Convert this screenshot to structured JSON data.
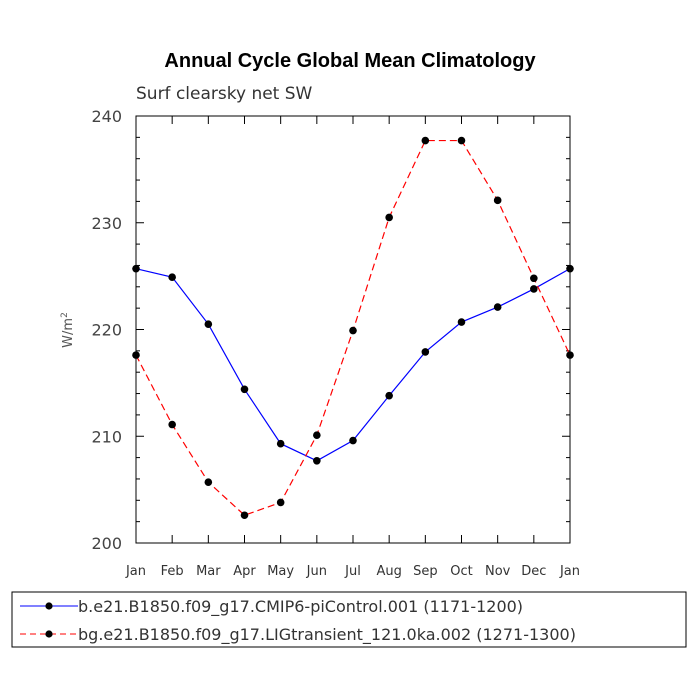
{
  "chart_data": {
    "type": "line",
    "title": "Annual Cycle Global Mean Climatology",
    "subtitle": "Surf clearsky net SW",
    "xlabel": "",
    "ylabel": "W/m",
    "ylabel_superscript": "2",
    "ylim": [
      200,
      240
    ],
    "yticks": [
      200,
      210,
      220,
      230,
      240
    ],
    "categories": [
      "Jan",
      "Feb",
      "Mar",
      "Apr",
      "May",
      "Jun",
      "Jul",
      "Aug",
      "Sep",
      "Oct",
      "Nov",
      "Dec",
      "Jan"
    ],
    "grid": false,
    "legend_placement": "bottom",
    "series": [
      {
        "name": "b.e21.B1850.f09_g17.CMIP6-piControl.001 (1171-1200)",
        "color": "#0000ff",
        "dash": "solid",
        "values": [
          225.7,
          224.9,
          220.5,
          214.4,
          209.3,
          207.7,
          209.6,
          213.8,
          217.9,
          220.7,
          222.1,
          223.8,
          225.7
        ]
      },
      {
        "name": "bg.e21.B1850.f09_g17.LIGtransient_121.0ka.002 (1271-1300)",
        "color": "#ff0000",
        "dash": "dashed",
        "values": [
          217.6,
          211.1,
          205.7,
          202.6,
          203.8,
          210.1,
          219.9,
          230.5,
          237.7,
          237.7,
          232.1,
          224.8,
          217.6
        ]
      }
    ]
  }
}
